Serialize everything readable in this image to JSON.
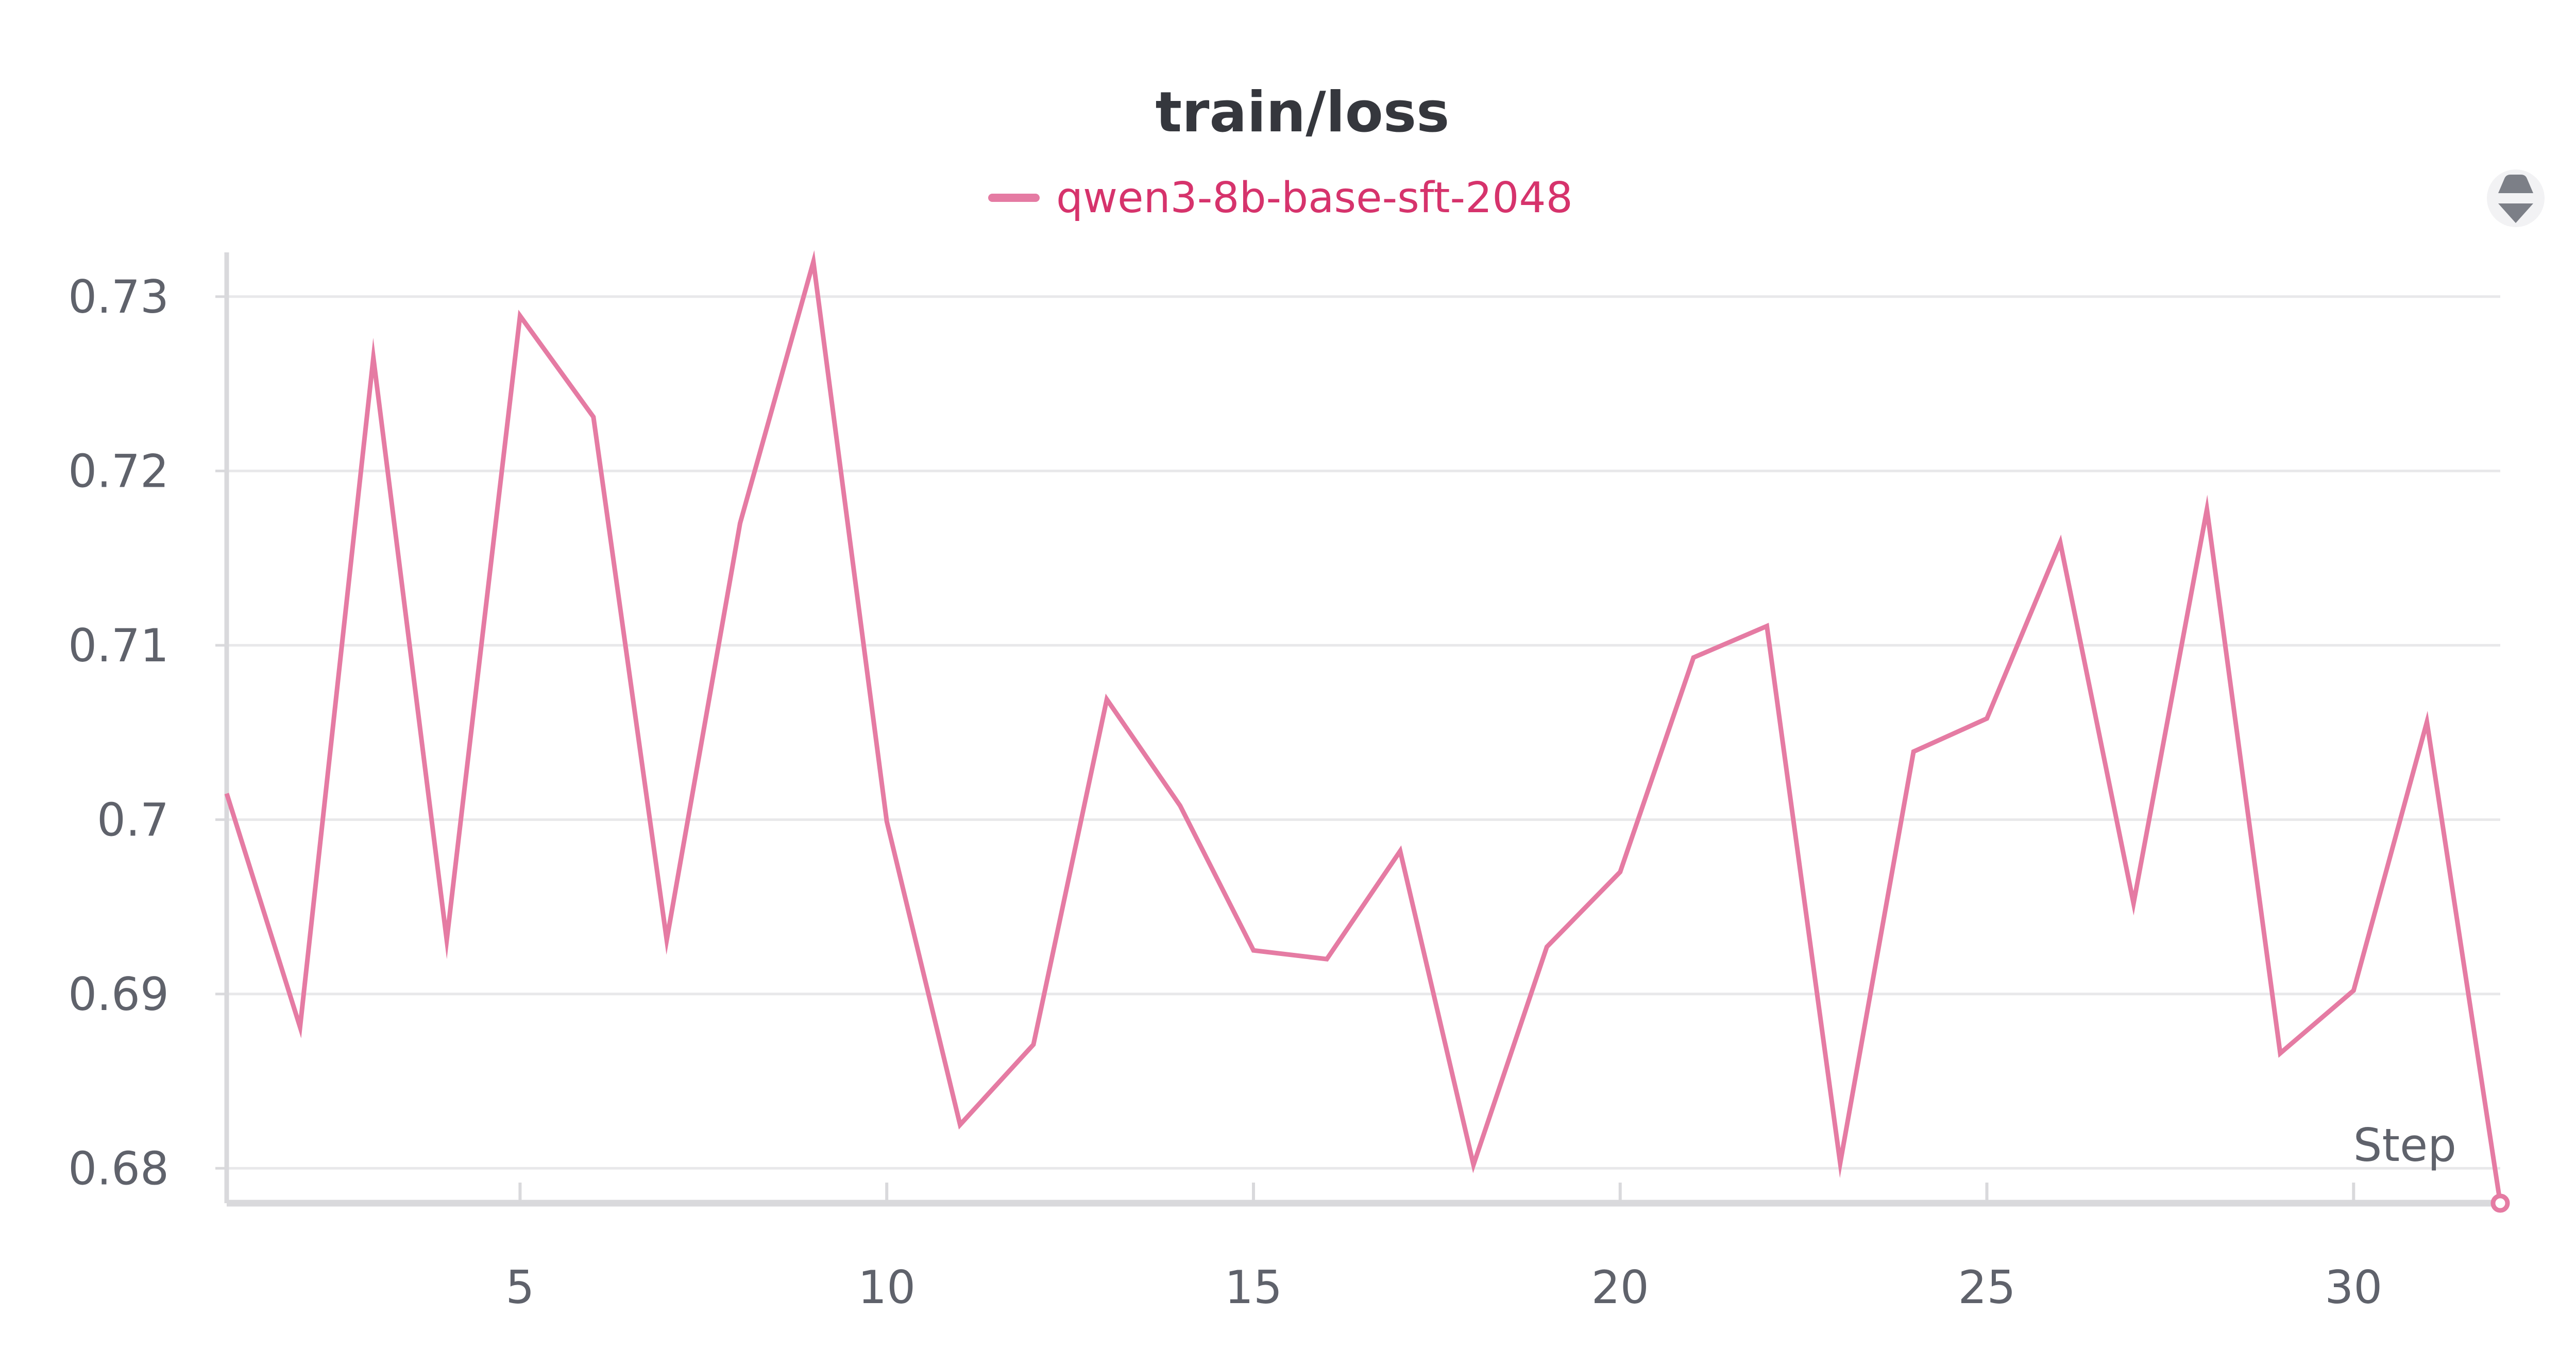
{
  "chart_data": {
    "type": "line",
    "title": "train/loss",
    "xlabel": "Step",
    "ylabel": "",
    "x": [
      1,
      2,
      3,
      4,
      5,
      6,
      7,
      8,
      9,
      10,
      11,
      12,
      13,
      14,
      15,
      16,
      17,
      18,
      19,
      20,
      21,
      22,
      23,
      24,
      25,
      26,
      27,
      28,
      29,
      30,
      31,
      32
    ],
    "series": [
      {
        "name": "qwen3-8b-base-sft-2048",
        "color": "#e57ba3",
        "values": [
          0.7015,
          0.6881,
          0.7265,
          0.6931,
          0.7289,
          0.7231,
          0.6931,
          0.717,
          0.732,
          0.6999,
          0.6825,
          0.6871,
          0.7069,
          0.7008,
          0.6925,
          0.692,
          0.6982,
          0.6802,
          0.6927,
          0.697,
          0.7093,
          0.7111,
          0.6803,
          0.7039,
          0.7058,
          0.7159,
          0.6952,
          0.7178,
          0.6866,
          0.6902,
          0.7056,
          0.678
        ]
      }
    ],
    "xlim": [
      1,
      32
    ],
    "ylim": [
      0.678,
      0.7318
    ],
    "x_ticks": [
      5,
      10,
      15,
      20,
      25,
      30
    ],
    "y_ticks": [
      0.68,
      0.69,
      0.7,
      0.71,
      0.72,
      0.73
    ],
    "y_tick_labels": [
      "0.68",
      "0.69",
      "0.7",
      "0.71",
      "0.72",
      "0.73"
    ],
    "grid": true,
    "legend_position": "top-center"
  },
  "controls": {
    "sort_icon": "sort-icon"
  }
}
